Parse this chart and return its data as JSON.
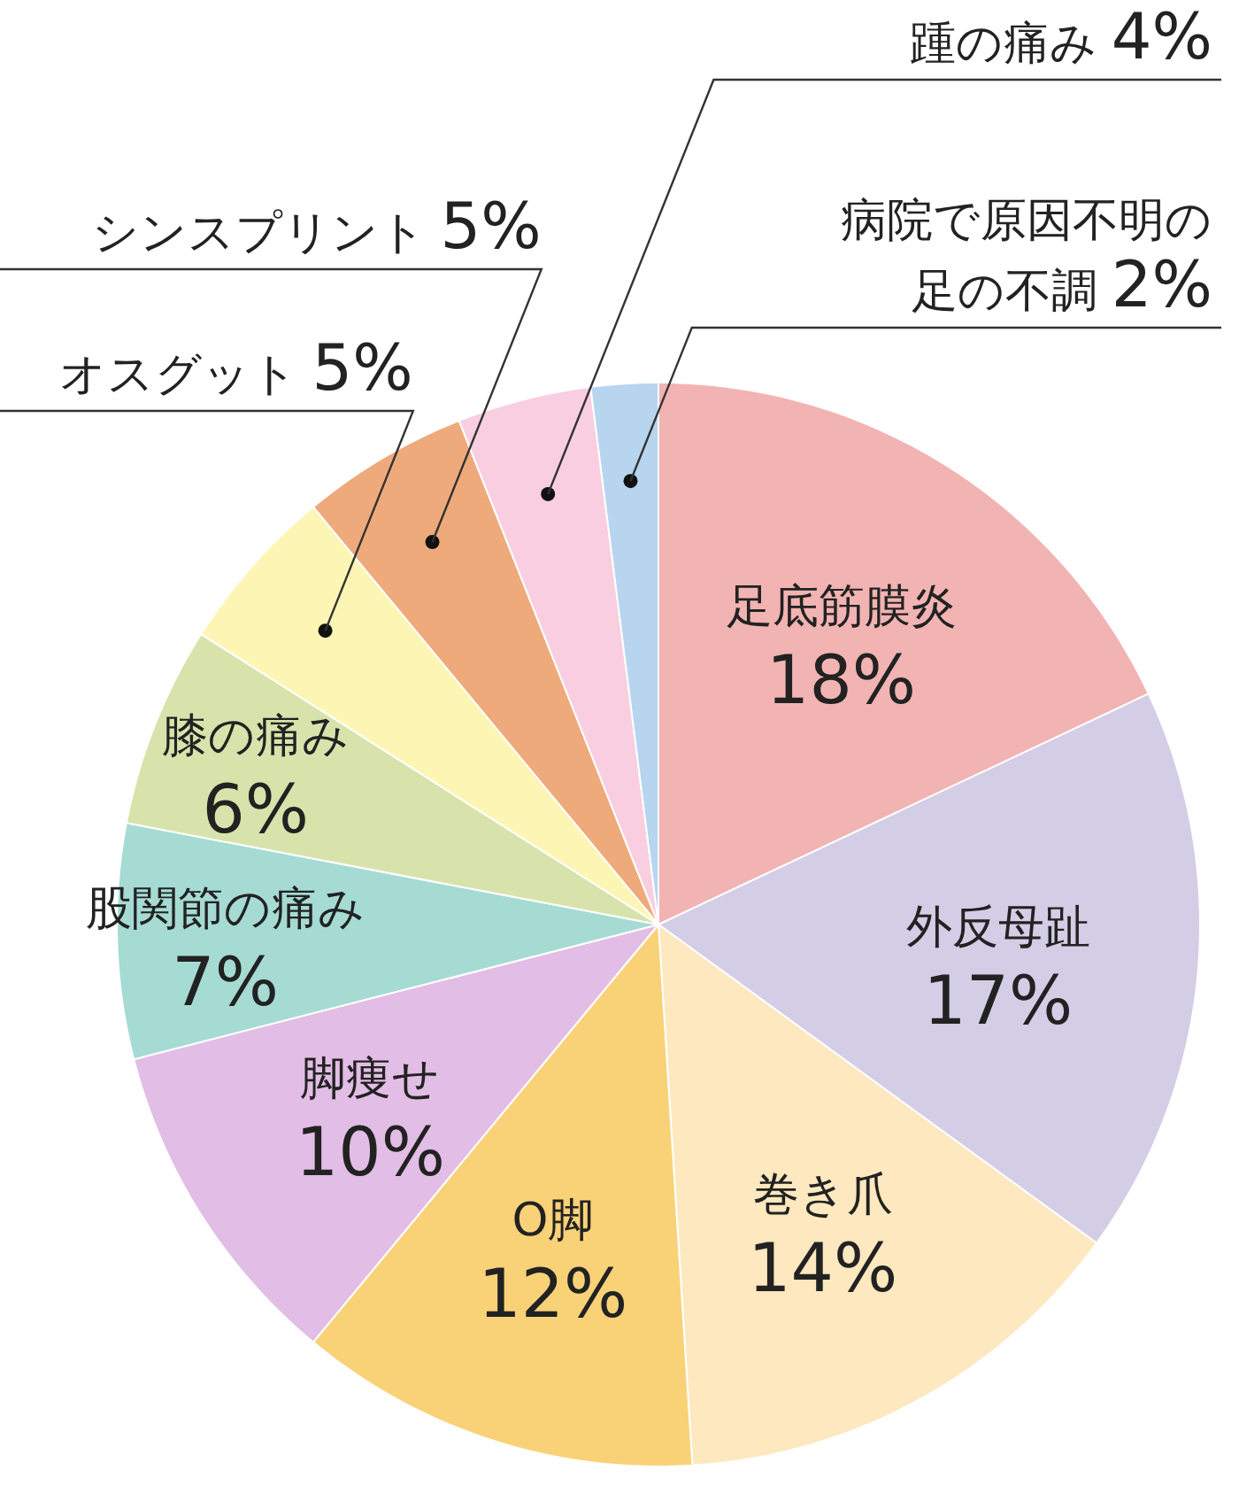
{
  "chart_data": {
    "type": "pie",
    "categories": [
      "足底筋膜炎",
      "外反母趾",
      "巻き爪",
      "O脚",
      "脚痩せ",
      "股関節の痛み",
      "膝の痛み",
      "オスグット",
      "シンスプリント",
      "踵の痛み",
      "病院で原因不明の足の不調"
    ],
    "values": [
      18,
      17,
      14,
      12,
      10,
      7,
      6,
      5,
      5,
      4,
      2
    ],
    "colors": [
      "#f2b3b3",
      "#d3cde6",
      "#fde8bf",
      "#f9d277",
      "#e2bde5",
      "#a5dbd3",
      "#d7e3ab",
      "#fdf5b3",
      "#eeaa7b",
      "#f8cee0",
      "#b7d5ee"
    ],
    "value_labels": [
      "18%",
      "17%",
      "14%",
      "12%",
      "10%",
      "7%",
      "6%",
      "5%",
      "5%",
      "4%",
      "2%"
    ]
  }
}
